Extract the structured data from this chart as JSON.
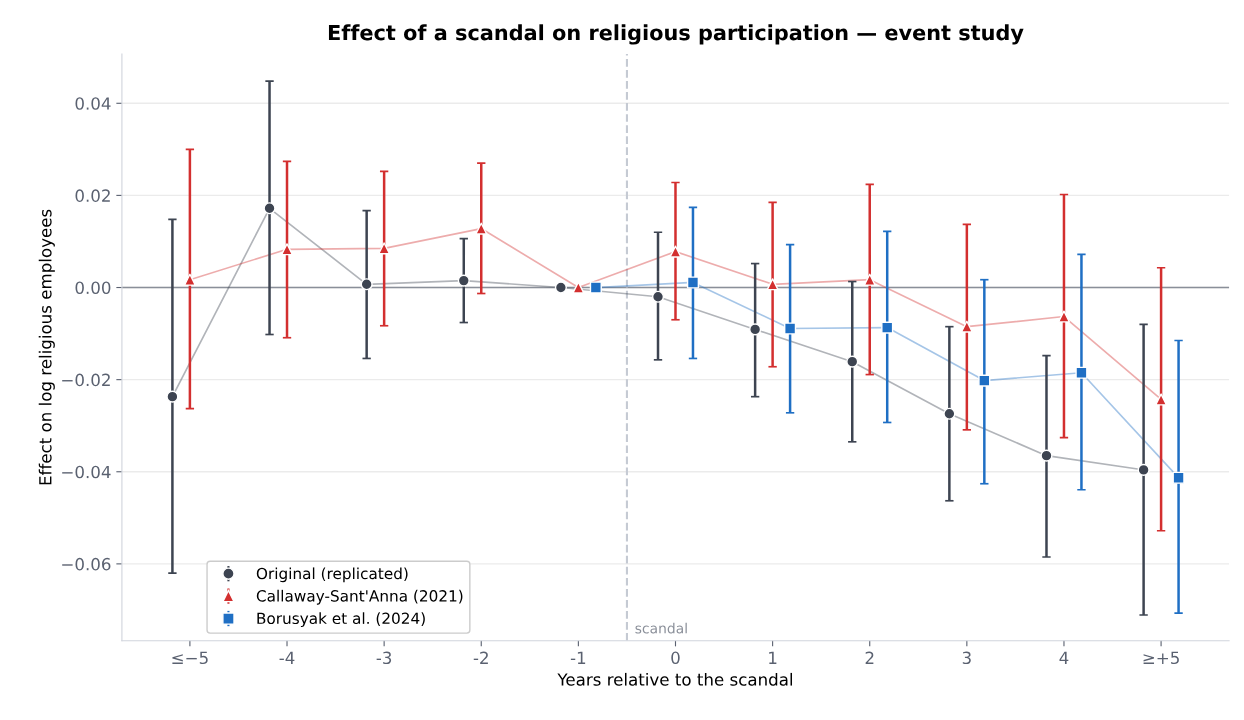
{
  "chart_data": {
    "type": "line",
    "title": "Effect of a scandal on religious participation — event study",
    "xlabel": "Years relative to the scandal",
    "ylabel": "Effect on log religious employees",
    "x": [
      -5,
      -4,
      -3,
      -2,
      -1,
      0,
      1,
      2,
      3,
      4,
      5
    ],
    "xlim": [
      -5.7,
      5.7
    ],
    "xticks": [
      {
        "value": -5,
        "label": "≤−5"
      },
      {
        "value": -4,
        "label": "-4"
      },
      {
        "value": -3,
        "label": "-3"
      },
      {
        "value": -2,
        "label": "-2"
      },
      {
        "value": -1,
        "label": "-1"
      },
      0,
      1,
      2,
      3,
      4,
      {
        "value": 5,
        "label": "≥+5"
      }
    ],
    "ylim": [
      -0.0767,
      0.0507
    ],
    "yticks": [
      {
        "value": -0.06,
        "label": "−0.06"
      },
      {
        "value": -0.04,
        "label": "−0.04"
      },
      {
        "value": -0.02,
        "label": "−0.02"
      },
      {
        "value": 0,
        "label": "0.00"
      },
      {
        "value": 0.02,
        "label": "0.02"
      },
      {
        "value": 0.04,
        "label": "0.04"
      }
    ],
    "grid": "y",
    "legend": "bottom left",
    "series": [
      {
        "name": "Original (replicated)",
        "color": "#3d4451",
        "marker": "circle",
        "x": [
          -5.18,
          -4.18,
          -3.18,
          -2.18,
          -1.18,
          -0.18,
          0.82,
          1.82,
          2.82,
          3.82,
          4.82
        ],
        "values": [
          -0.0237,
          0.0172,
          0.0007,
          0.0015,
          0,
          -0.002,
          -0.0091,
          -0.0161,
          -0.0274,
          -0.0365,
          -0.0396
        ],
        "errors": [
          [
            -0.062,
            0.0148
          ],
          [
            -0.0102,
            0.0448
          ],
          [
            -0.0154,
            0.0167
          ],
          [
            -0.0076,
            0.0106
          ],
          null,
          [
            -0.0157,
            0.012
          ],
          [
            -0.0237,
            0.0052
          ],
          [
            -0.0335,
            0.0013
          ],
          [
            -0.0463,
            -0.0085
          ],
          [
            -0.0585,
            -0.0148
          ],
          [
            -0.0711,
            -0.008
          ]
        ]
      },
      {
        "name": "Callaway-Sant'Anna (2021)",
        "color": "#d32f2f",
        "marker": "triangle",
        "values": [
          0.0017,
          0.0083,
          0.0085,
          0.0128,
          0,
          0.0078,
          0.0007,
          0.0017,
          -0.0085,
          -0.0063,
          -0.0243
        ],
        "errors": [
          [
            -0.0263,
            0.03
          ],
          [
            -0.0109,
            0.0274
          ],
          [
            -0.0083,
            0.0252
          ],
          [
            -0.0013,
            0.027
          ],
          null,
          [
            -0.007,
            0.0228
          ],
          [
            -0.0172,
            0.0185
          ],
          [
            -0.0189,
            0.0224
          ],
          [
            -0.0309,
            0.0137
          ],
          [
            -0.0326,
            0.0202
          ],
          [
            -0.0528,
            0.0043
          ]
        ]
      },
      {
        "name": "Borusyak et al. (2024)",
        "color": "#1f6fc4",
        "marker": "square",
        "x": [
          -0.82,
          0.18,
          1.18,
          2.18,
          3.18,
          4.18,
          5.18
        ],
        "values": [
          0,
          0.0011,
          -0.0089,
          -0.0087,
          -0.0202,
          -0.0185,
          -0.0413
        ],
        "errors": [
          null,
          [
            -0.0154,
            0.0174
          ],
          [
            -0.0272,
            0.0093
          ],
          [
            -0.0293,
            0.0122
          ],
          [
            -0.0426,
            0.0017
          ],
          [
            -0.0439,
            0.0072
          ],
          [
            -0.0707,
            -0.0115
          ]
        ]
      }
    ],
    "ref_lines": [
      {
        "axis": "y",
        "value": 0,
        "color": "#8a8f99",
        "line_style": "solid"
      },
      {
        "axis": "x",
        "value": -0.5,
        "label": "scandal",
        "color": "#c5cad3",
        "line_style": "dashed"
      }
    ]
  }
}
